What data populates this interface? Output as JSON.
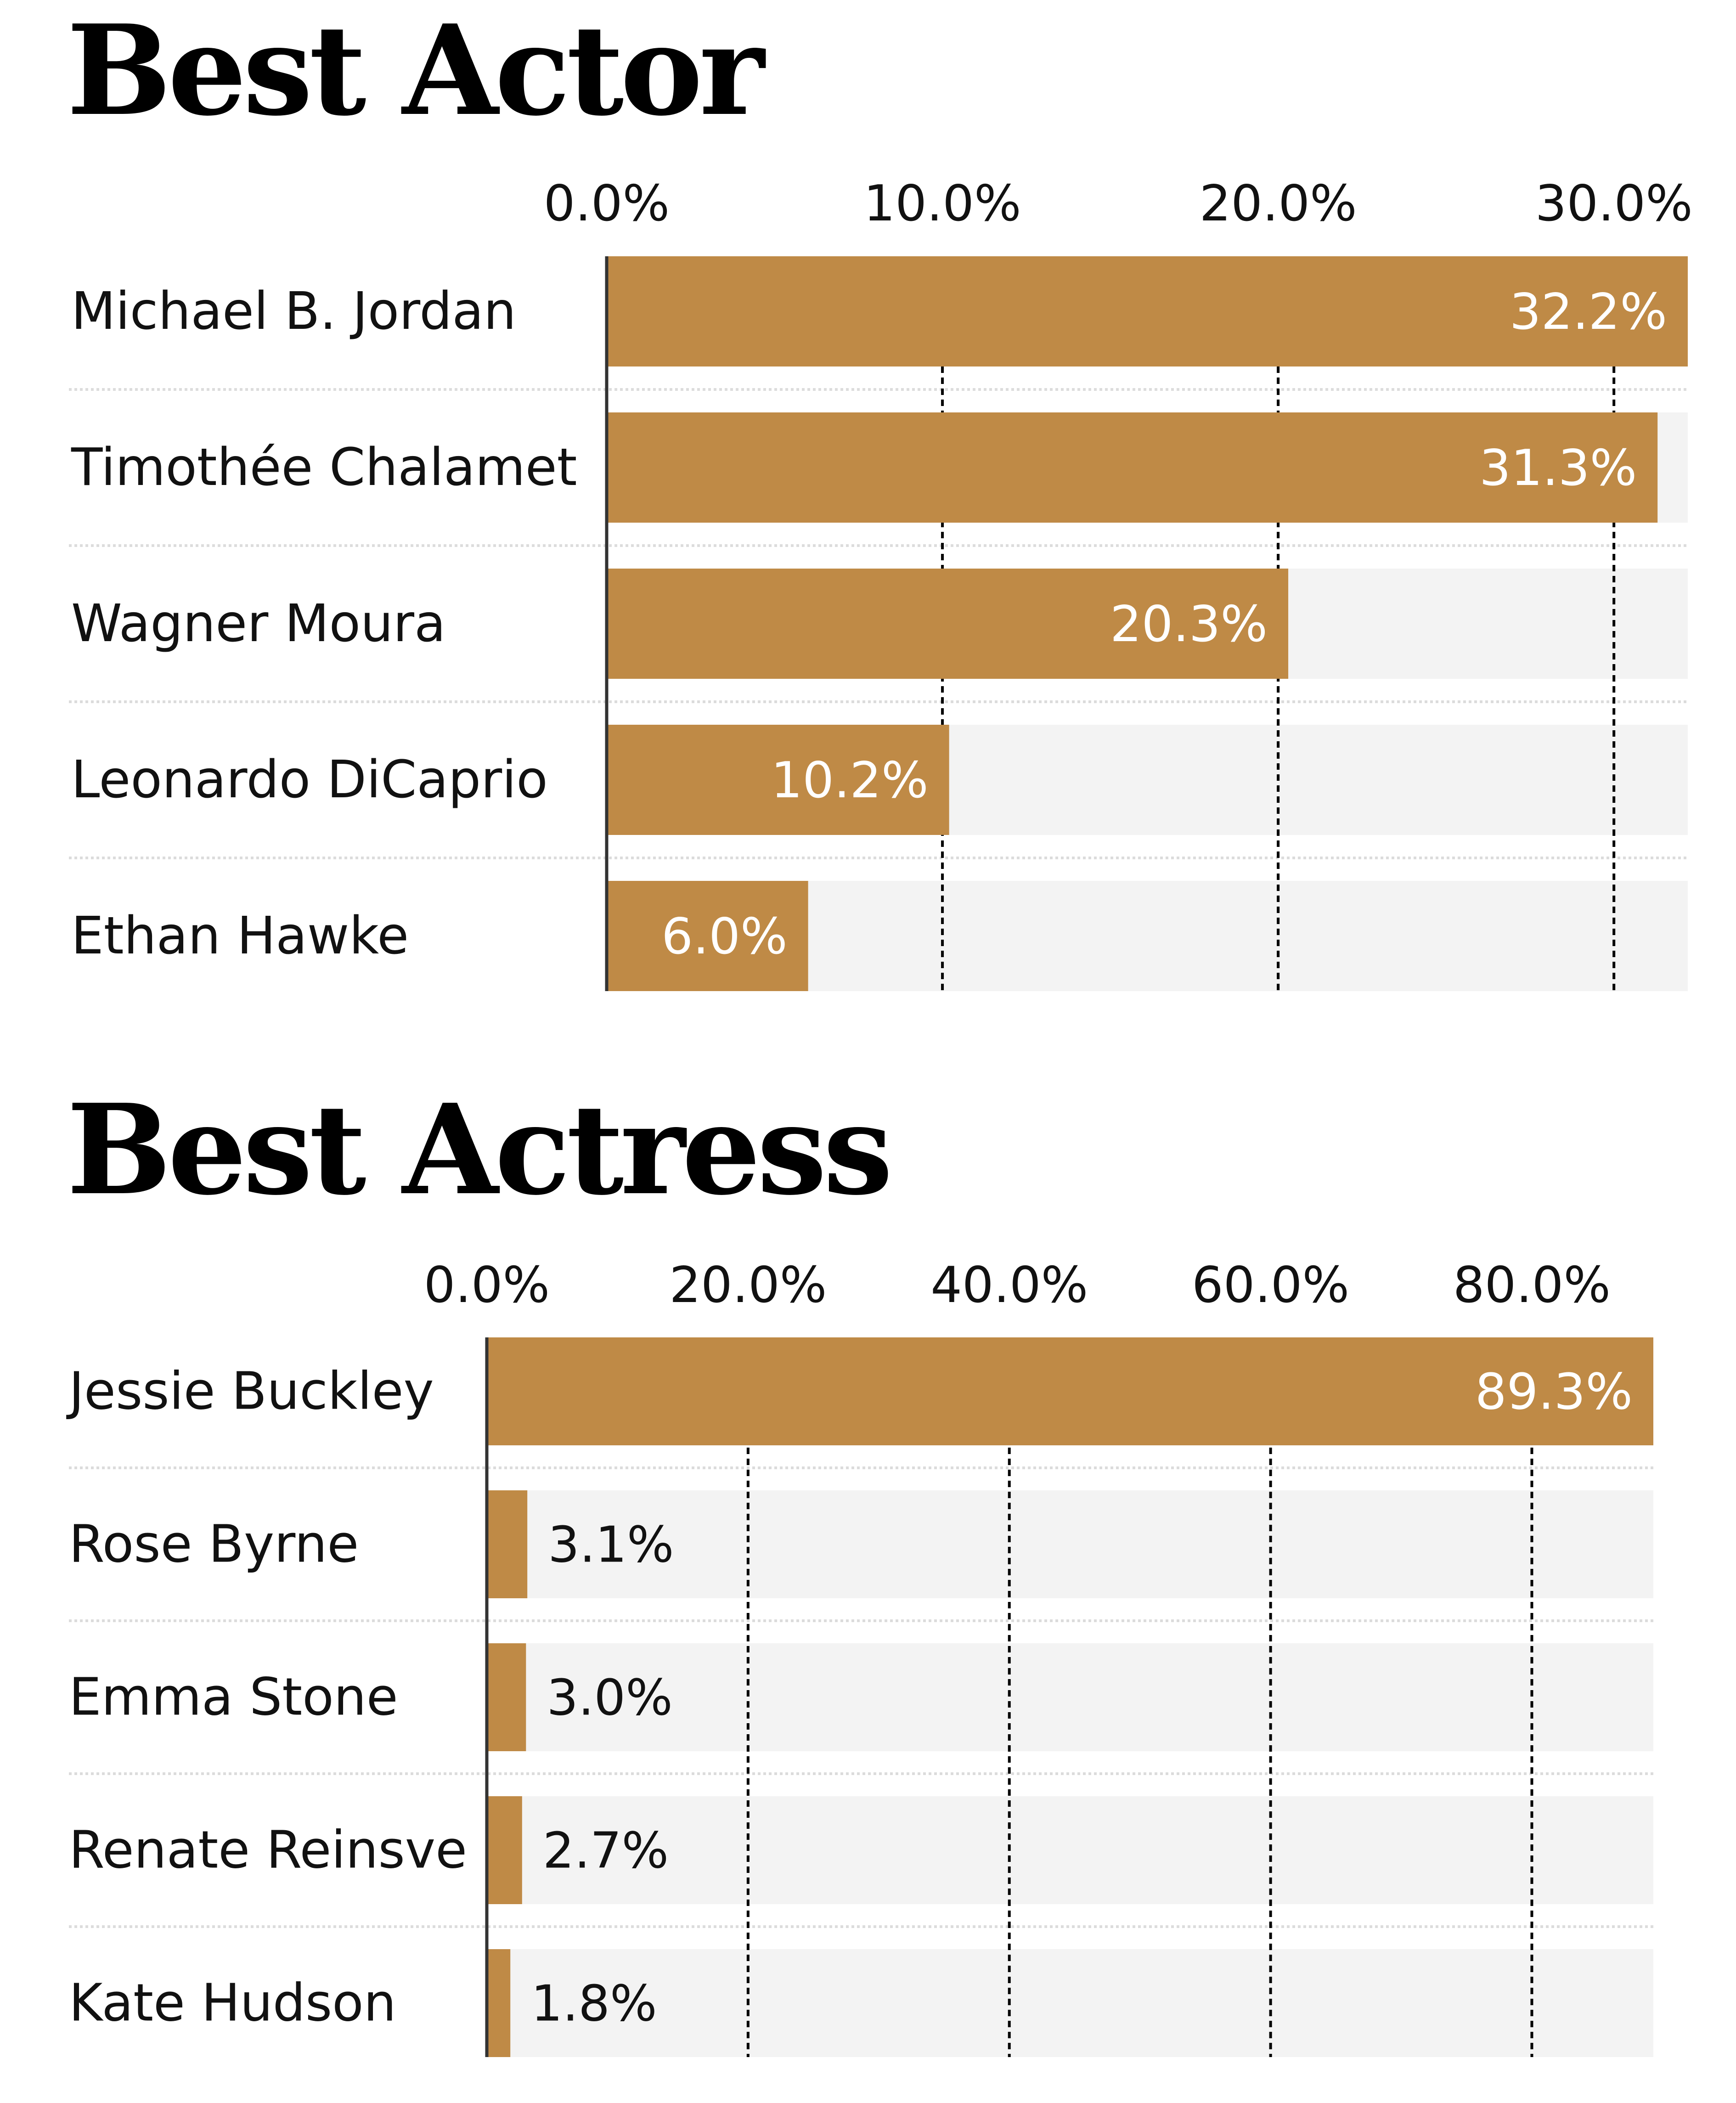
{
  "chart_data": [
    {
      "type": "bar",
      "orientation": "horizontal",
      "title": "Best Actor",
      "categories": [
        "Michael B. Jordan",
        "Timothée Chalamet",
        "Wagner Moura",
        "Leonardo DiCaprio",
        "Ethan Hawke"
      ],
      "values": [
        32.2,
        31.3,
        20.3,
        10.2,
        6.0
      ],
      "value_labels": [
        "32.2%",
        "31.3%",
        "20.3%",
        "10.2%",
        "6.0%"
      ],
      "xticks": [
        0,
        10,
        20,
        30
      ],
      "xtick_labels": [
        "0.0%",
        "10.0%",
        "20.0%",
        "30.0%"
      ],
      "xlim": [
        0,
        32.2
      ],
      "grid": true,
      "colors": {
        "bar": "#BF8A46",
        "track": "#F3F3F3",
        "grid": "#000000",
        "separator": "#DCDCDC"
      }
    },
    {
      "type": "bar",
      "orientation": "horizontal",
      "title": "Best Actress",
      "categories": [
        "Jessie Buckley",
        "Rose Byrne",
        "Emma Stone",
        "Renate Reinsve",
        "Kate Hudson"
      ],
      "values": [
        89.3,
        3.1,
        3.0,
        2.7,
        1.8
      ],
      "value_labels": [
        "89.3%",
        "3.1%",
        "3.0%",
        "2.7%",
        "1.8%"
      ],
      "xticks": [
        0,
        20,
        40,
        60,
        80
      ],
      "xtick_labels": [
        "0.0%",
        "20.0%",
        "40.0%",
        "60.0%",
        "80.0%"
      ],
      "xlim": [
        0,
        89.3
      ],
      "grid": true,
      "colors": {
        "bar": "#BF8A46",
        "track": "#F3F3F3",
        "grid": "#000000",
        "separator": "#DCDCDC"
      }
    }
  ]
}
